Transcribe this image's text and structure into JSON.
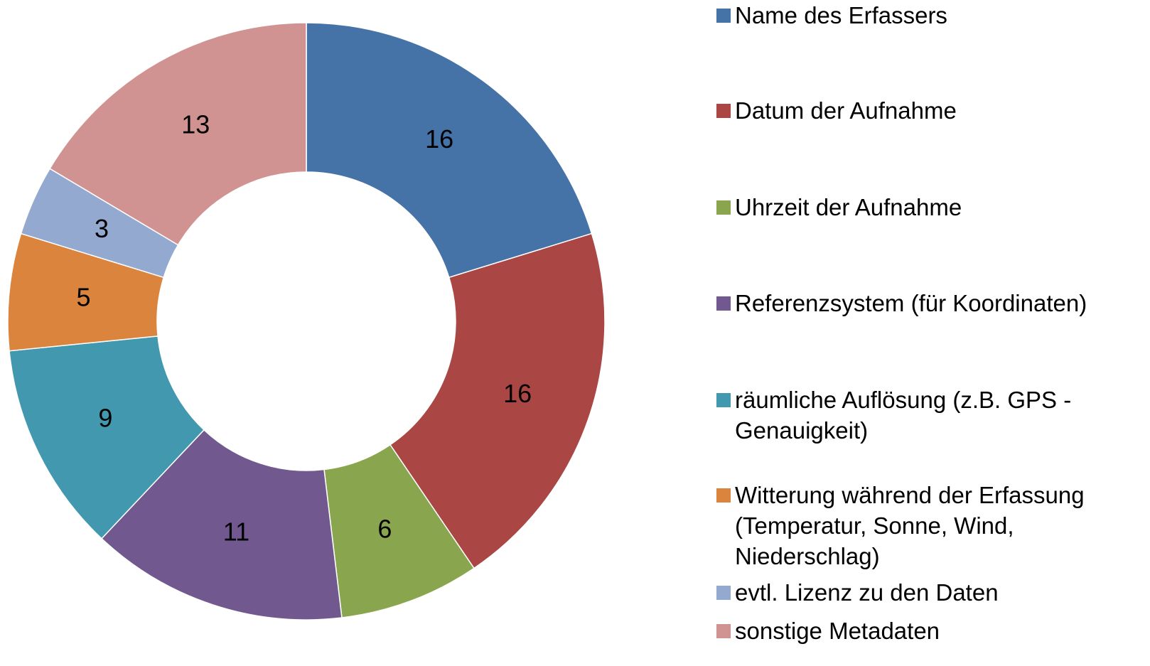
{
  "chart_data": {
    "type": "donut",
    "categories": [
      "Name des Erfassers",
      "Datum der Aufnahme",
      "Uhrzeit der Aufnahme",
      "Referenzsystem (für Koordinaten)",
      "räumliche Auflösung (z.B. GPS - Genauigkeit)",
      "Witterung während der Erfassung (Temperatur, Sonne, Wind, Niederschlag)",
      "evtl. Lizenz zu den Daten",
      "sonstige Metadaten"
    ],
    "values": [
      16,
      16,
      6,
      11,
      9,
      5,
      3,
      13
    ],
    "colors": [
      "#4572a7",
      "#aa4643",
      "#89a54e",
      "#71588f",
      "#4198af",
      "#db843d",
      "#93a9cf",
      "#d19392"
    ],
    "legend": "right"
  }
}
